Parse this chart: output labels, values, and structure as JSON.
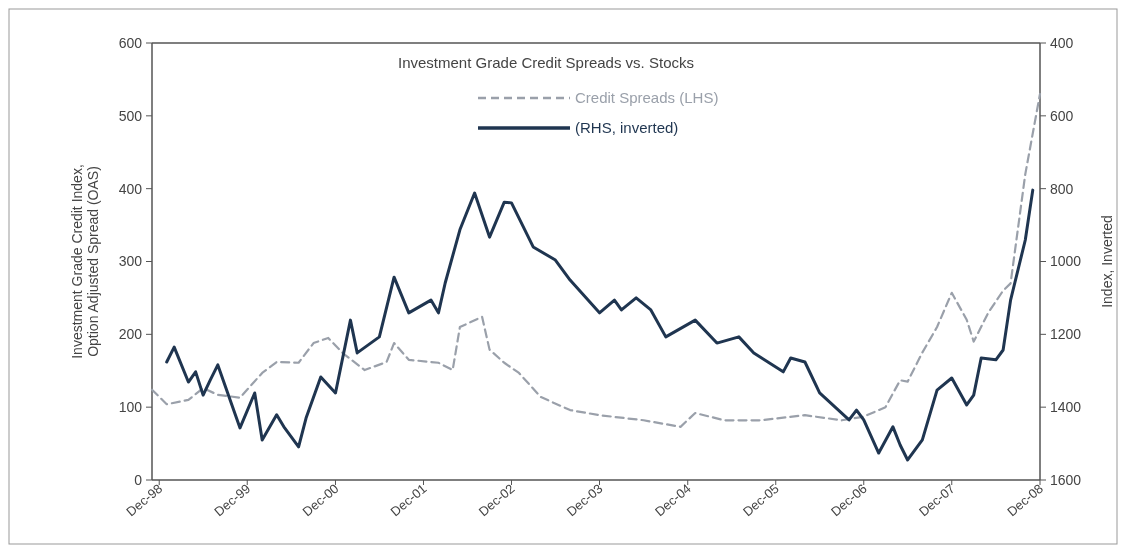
{
  "chart_data": {
    "type": "line",
    "title": "Investment Grade Credit Spreads vs. Stocks",
    "ylabel": "Investment Grade Credit Index,\nOption Adjusted Spread (OAS)",
    "y2label": "Index, Inverted",
    "x": [
      "1998-11",
      "1999-01",
      "1999-04",
      "1999-06",
      "1999-08",
      "1999-11",
      "2000-02",
      "2000-04",
      "2000-07",
      "2000-09",
      "2000-11",
      "2001-01",
      "2001-04",
      "2001-07",
      "2001-08",
      "2001-10",
      "2002-02",
      "2002-04",
      "2002-05",
      "2002-08",
      "2002-09",
      "2002-11",
      "2003-01",
      "2003-04",
      "2003-08",
      "2003-12",
      "2004-06",
      "2004-11",
      "2005-01",
      "2005-05",
      "2005-10",
      "2006-04",
      "2006-09",
      "2006-12",
      "2007-03",
      "2007-05",
      "2007-06",
      "2007-08",
      "2007-10",
      "2007-12",
      "2008-02",
      "2008-03",
      "2008-05",
      "2008-07",
      "2008-08",
      "2008-10",
      "2008-12"
    ],
    "series": [
      {
        "name": "Credit Spreads (LHS)",
        "color": "#9aa0aa",
        "line_style": "dashed",
        "values": [
          124,
          104,
          110,
          126,
          117,
          113,
          147,
          162,
          161,
          188,
          195,
          174,
          151,
          162,
          188,
          165,
          161,
          151,
          210,
          224,
          179,
          161,
          147,
          114,
          96,
          89,
          82,
          73,
          92,
          82,
          82,
          89,
          82,
          87,
          100,
          137,
          135,
          175,
          210,
          257,
          220,
          190,
          230,
          260,
          270,
          420,
          530
        ]
      },
      {
        "name": "(RHS, inverted)",
        "color": "#1f3550",
        "line_style": "solid",
        "axis": "y2",
        "x": [
          "1999-01",
          "1999-02",
          "1999-04",
          "1999-05",
          "1999-06",
          "1999-07",
          "1999-08",
          "1999-11",
          "2000-01",
          "2000-02",
          "2000-04",
          "2000-05",
          "2000-07",
          "2000-08",
          "2000-10",
          "2000-12",
          "2001-02",
          "2001-03",
          "2001-06",
          "2001-08",
          "2001-10",
          "2002-01",
          "2002-02",
          "2002-03",
          "2002-05",
          "2002-07",
          "2002-09",
          "2002-11",
          "2002-12",
          "2003-03",
          "2003-06",
          "2003-08",
          "2003-12",
          "2004-02",
          "2004-03",
          "2004-05",
          "2004-07",
          "2004-09",
          "2005-01",
          "2005-04",
          "2005-07",
          "2005-09",
          "2006-01",
          "2006-02",
          "2006-04",
          "2006-06",
          "2006-10",
          "2006-11",
          "2006-12",
          "2007-02",
          "2007-04",
          "2007-05",
          "2007-06",
          "2007-08",
          "2007-10",
          "2007-12",
          "2008-02",
          "2008-03",
          "2008-04",
          "2008-06",
          "2008-07",
          "2008-08",
          "2008-10",
          "2008-11"
        ],
        "values": [
          1276,
          1235,
          1331,
          1303,
          1367,
          1325,
          1284,
          1457,
          1361,
          1490,
          1421,
          1454,
          1509,
          1430,
          1317,
          1361,
          1161,
          1251,
          1207,
          1043,
          1141,
          1106,
          1141,
          1059,
          913,
          812,
          933,
          837,
          839,
          960,
          996,
          1051,
          1141,
          1106,
          1133,
          1100,
          1133,
          1207,
          1161,
          1224,
          1207,
          1251,
          1303,
          1265,
          1276,
          1361,
          1435,
          1408,
          1435,
          1526,
          1454,
          1504,
          1545,
          1490,
          1353,
          1320,
          1394,
          1367,
          1265,
          1270,
          1243,
          1106,
          941,
          804
        ]
      }
    ],
    "xlim": [
      "1998-11",
      "2008-12"
    ],
    "xticks": [
      {
        "value": "1998-12",
        "label": "Dec-98"
      },
      {
        "value": "1999-12",
        "label": "Dec-99"
      },
      {
        "value": "2000-12",
        "label": "Dec-00"
      },
      {
        "value": "2001-12",
        "label": "Dec-01"
      },
      {
        "value": "2002-12",
        "label": "Dec-02"
      },
      {
        "value": "2003-12",
        "label": "Dec-03"
      },
      {
        "value": "2004-12",
        "label": "Dec-04"
      },
      {
        "value": "2005-12",
        "label": "Dec-05"
      },
      {
        "value": "2006-12",
        "label": "Dec-06"
      },
      {
        "value": "2007-12",
        "label": "Dec-07"
      },
      {
        "value": "2008-12",
        "label": "Dec-08"
      }
    ],
    "ylim": [
      0,
      600
    ],
    "yticks": [
      0,
      100,
      200,
      300,
      400,
      500,
      600
    ],
    "y2lim": [
      1600,
      400
    ],
    "y2ticks": [
      400,
      600,
      800,
      1000,
      1200,
      1400,
      1600
    ],
    "legend": "top",
    "grid": false
  }
}
